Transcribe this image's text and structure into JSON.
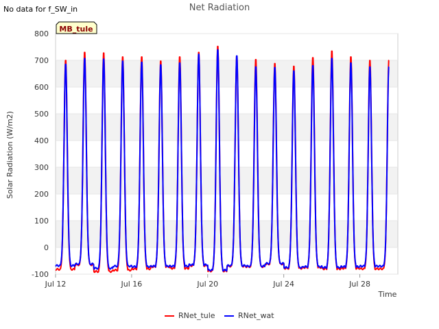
{
  "notice": "No data for f_SW_in",
  "site_label": "MB_tule",
  "colors": {
    "rnet_tule": "#ff0000",
    "rnet_wat": "#0000ff",
    "band": "#f2f2f2",
    "badge_bg": "#ffffcc",
    "badge_text": "#8b0000"
  },
  "chart_data": {
    "type": "line",
    "title": "Net Radiation",
    "xlabel": "Time",
    "ylabel": "Solar Radiation (W/m2)",
    "ylim": [
      -100,
      800
    ],
    "yticks": [
      -100,
      0,
      100,
      200,
      300,
      400,
      500,
      600,
      700,
      800
    ],
    "xlim": [
      12,
      30
    ],
    "xticks": [
      {
        "value": 12,
        "label": "Jul 12"
      },
      {
        "value": 16,
        "label": "Jul 16"
      },
      {
        "value": 20,
        "label": "Jul 20"
      },
      {
        "value": 24,
        "label": "Jul 24"
      },
      {
        "value": 28,
        "label": "Jul 28"
      }
    ],
    "legend": "bottom-center",
    "series": [
      {
        "name": "RNet_tule",
        "color": "#ff0000",
        "daily_peaks": [
          705,
          735,
          733,
          718,
          718,
          702,
          718,
          735,
          758,
          720,
          708,
          693,
          683,
          715,
          740,
          718,
          705
        ],
        "night_mins": [
          -82,
          -65,
          -90,
          -85,
          -80,
          -72,
          -78,
          -68,
          -88,
          -70,
          -72,
          -62,
          -78,
          -75,
          -80,
          -78,
          -80
        ]
      },
      {
        "name": "RNet_wat",
        "color": "#0000ff",
        "daily_peaks": [
          690,
          712,
          710,
          702,
          698,
          688,
          695,
          728,
          745,
          722,
          680,
          678,
          665,
          685,
          712,
          695,
          680
        ],
        "night_mins": [
          -68,
          -62,
          -78,
          -70,
          -72,
          -70,
          -70,
          -65,
          -85,
          -68,
          -70,
          -60,
          -75,
          -72,
          -75,
          -72,
          -70
        ]
      }
    ]
  }
}
